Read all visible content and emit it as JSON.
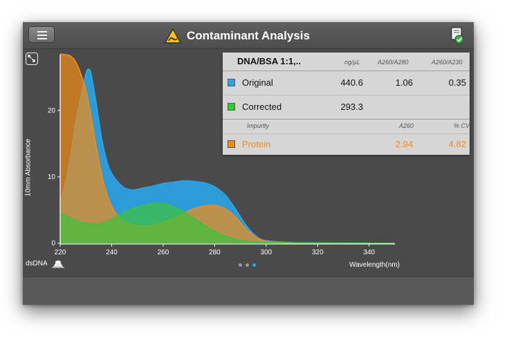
{
  "header": {
    "title": "Contaminant Analysis",
    "menu_icon": "hamburger-menu-icon",
    "title_icon": "warning-triangle-icon",
    "report_icon": "report-check-icon"
  },
  "chart_data": {
    "type": "area",
    "xlabel": "Wavelength(nm)",
    "ylabel": "10mm Absorbance",
    "xlim": [
      220,
      350
    ],
    "ylim": [
      0,
      28
    ],
    "x_ticks": [
      "220",
      "240",
      "260",
      "280",
      "300",
      "320",
      "340"
    ],
    "y_ticks": [
      "0",
      "10",
      "20"
    ],
    "series": [
      {
        "name": "Original",
        "color": "#2aa4e8",
        "x": [
          220,
          222,
          224,
          226,
          228,
          230,
          231,
          232,
          234,
          236,
          238,
          240,
          244,
          248,
          252,
          256,
          260,
          264,
          268,
          272,
          276,
          280,
          284,
          288,
          292,
          296,
          300,
          310,
          320,
          350
        ],
        "y": [
          6,
          9,
          13,
          18,
          22,
          25.5,
          26.2,
          25.5,
          21,
          16,
          12.5,
          10.5,
          8.6,
          8,
          8.3,
          8.6,
          9,
          9.2,
          9.4,
          9.3,
          9.1,
          8.5,
          7.3,
          5.2,
          2.8,
          1.1,
          0.4,
          0.1,
          0.05,
          0
        ]
      },
      {
        "name": "Corrected",
        "color": "#3cc23c",
        "x": [
          220,
          224,
          228,
          232,
          236,
          240,
          244,
          248,
          252,
          256,
          260,
          264,
          268,
          272,
          276,
          280,
          284,
          288,
          292,
          296,
          300,
          310,
          350
        ],
        "y": [
          4.5,
          3.8,
          3.2,
          2.9,
          3,
          3.6,
          4.5,
          5.2,
          5.7,
          6,
          6,
          5.5,
          4.7,
          3.7,
          2.7,
          1.8,
          1.1,
          0.6,
          0.3,
          0.15,
          0.1,
          0.05,
          0
        ]
      },
      {
        "name": "Protein",
        "color": "#f08c18",
        "x": [
          220,
          222,
          224,
          226,
          228,
          230,
          232,
          234,
          236,
          238,
          240,
          242,
          244,
          248,
          252,
          256,
          260,
          264,
          268,
          272,
          276,
          280,
          284,
          288,
          292,
          296,
          300,
          310,
          350
        ],
        "y": [
          28.5,
          28.4,
          28.2,
          27.3,
          25.5,
          23,
          19,
          14.5,
          10.5,
          7.5,
          5.5,
          4.3,
          3.5,
          2.8,
          2.6,
          2.7,
          3.2,
          3.8,
          4.5,
          5.2,
          5.6,
          5.7,
          5.2,
          4,
          2.2,
          0.9,
          0.3,
          0.05,
          0
        ]
      }
    ]
  },
  "results": {
    "sample_name": "DNA/BSA 1:1,..",
    "col_conc": "ng/µL",
    "col_a260_280": "A260/A280",
    "col_a260_230": "A260/A230",
    "rows": [
      {
        "label": "Original",
        "conc": "440.6",
        "a260_280": "1.06",
        "a260_230": "0.35",
        "color": "#2aa4e8"
      },
      {
        "label": "Corrected",
        "conc": "293.3",
        "a260_280": "",
        "a260_230": "",
        "color": "#2bd12b"
      }
    ],
    "impurity_header": "Impurity",
    "impurity_col_a260": "A260",
    "impurity_col_cv": "% CV",
    "impurities": [
      {
        "label": "Protein",
        "a260": "2.94",
        "cv": "4.82",
        "color": "#f08c18"
      }
    ]
  },
  "footer": {
    "sample_type": "dsDNA",
    "page_dots": 3,
    "active_dot": 3
  }
}
